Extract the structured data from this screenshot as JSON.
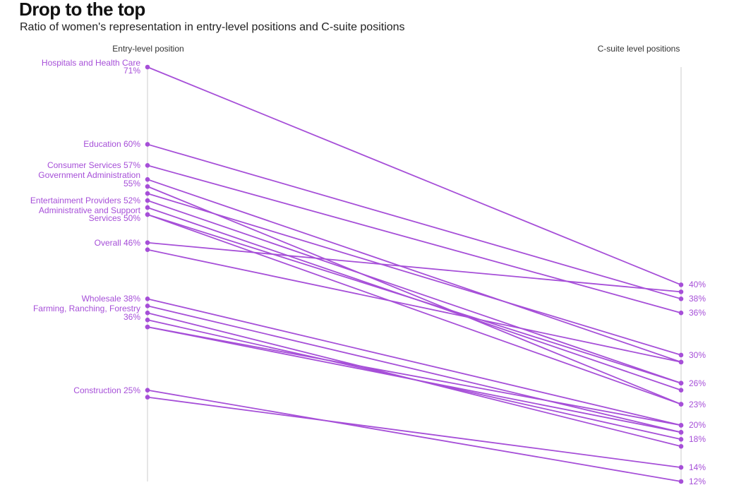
{
  "title": "Drop to the top",
  "subtitle": "Ratio of women's representation in entry-level positions and C-suite positions",
  "colors": {
    "line": "#a64fd8",
    "axis": "#cccccc",
    "text": "#a64fd8"
  },
  "chart_data": {
    "type": "slope",
    "left_axis_label": "Entry-level position",
    "right_axis_label": "C-suite level positions",
    "scale": {
      "top_value": 71,
      "bottom_value": 12
    },
    "left_labels": [
      {
        "lines": [
          "Hospitals and Health Care",
          "71%"
        ]
      },
      {
        "lines": [
          "Education 60%"
        ]
      },
      {
        "lines": [
          "Consumer Services 57%"
        ]
      },
      {
        "lines": [
          "Government Administration",
          "55%"
        ]
      },
      {
        "lines": [
          "Entertainment Providers 52%"
        ]
      },
      {
        "lines": [
          "Administrative and Support",
          "Services 50%"
        ]
      },
      {
        "lines": [
          "Overall 46%"
        ]
      },
      {
        "lines": [
          "Wholesale 38%"
        ]
      },
      {
        "lines": [
          "Farming, Ranching, Forestry",
          "36%"
        ]
      },
      {
        "lines": [
          "Construction 25%"
        ]
      }
    ],
    "right_labels": [
      "40%",
      "38%",
      "36%",
      "30%",
      "26%",
      "23%",
      "20%",
      "18%",
      "14%",
      "12%"
    ],
    "series": [
      {
        "entry": 71,
        "csuite": 40
      },
      {
        "entry": 60,
        "csuite": 38
      },
      {
        "entry": 57,
        "csuite": 36
      },
      {
        "entry": 55,
        "csuite": 29
      },
      {
        "entry": 54,
        "csuite": 23
      },
      {
        "entry": 53,
        "csuite": 30
      },
      {
        "entry": 52,
        "csuite": 26
      },
      {
        "entry": 51,
        "csuite": 25
      },
      {
        "entry": 50,
        "csuite": 26
      },
      {
        "entry": 50,
        "csuite": 23
      },
      {
        "entry": 46,
        "csuite": 39
      },
      {
        "entry": 45,
        "csuite": 29
      },
      {
        "entry": 38,
        "csuite": 20
      },
      {
        "entry": 37,
        "csuite": 19
      },
      {
        "entry": 36,
        "csuite": 17
      },
      {
        "entry": 35,
        "csuite": 18
      },
      {
        "entry": 34,
        "csuite": 19
      },
      {
        "entry": 34,
        "csuite": 20
      },
      {
        "entry": 25,
        "csuite": 12
      },
      {
        "entry": 24,
        "csuite": 14
      }
    ]
  }
}
